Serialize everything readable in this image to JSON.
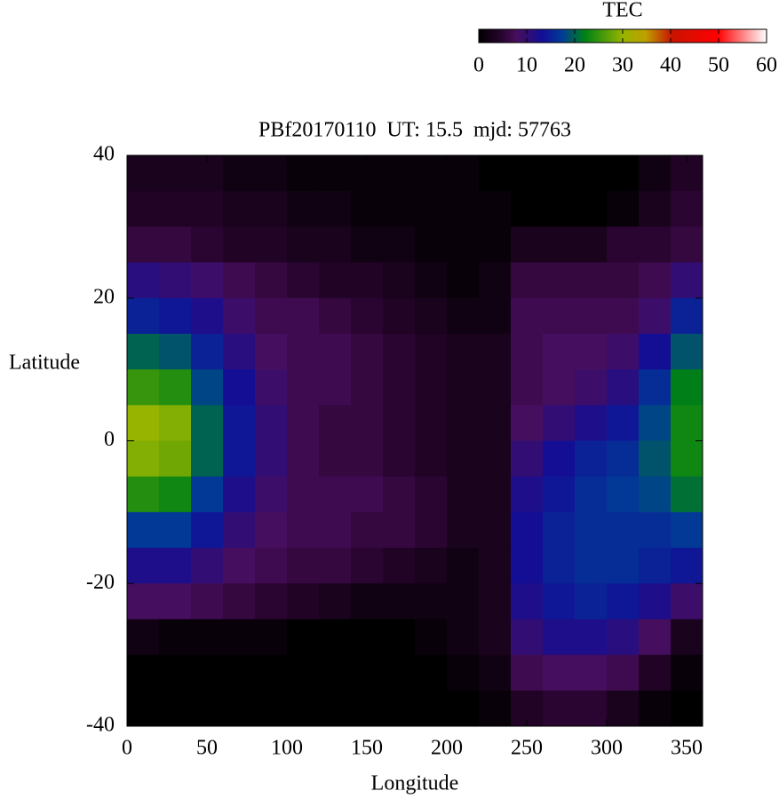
{
  "chart_data": {
    "type": "heatmap",
    "title": "PBf20170110  UT: 15.5  mjd: 57763",
    "xlabel": "Longitude",
    "ylabel": "Latitude",
    "x": [
      10,
      30,
      50,
      70,
      90,
      110,
      130,
      150,
      170,
      190,
      210,
      230,
      250,
      270,
      290,
      310,
      330,
      350
    ],
    "y": [
      37.5,
      32.5,
      27.5,
      22.5,
      17.5,
      12.5,
      7.5,
      2.5,
      -2.5,
      -7.5,
      -12.5,
      -17.5,
      -22.5,
      -27.5,
      -32.5,
      -37.5
    ],
    "z": [
      [
        3,
        3,
        3,
        2,
        2,
        1,
        1,
        1,
        1,
        1,
        1,
        0,
        0,
        0,
        0,
        0,
        2,
        4
      ],
      [
        4,
        4,
        4,
        3,
        3,
        2,
        2,
        1,
        1,
        1,
        1,
        1,
        0,
        0,
        0,
        1,
        3,
        5
      ],
      [
        6,
        6,
        5,
        4,
        4,
        3,
        3,
        2,
        2,
        1,
        1,
        1,
        3,
        3,
        3,
        5,
        5,
        6
      ],
      [
        11,
        10,
        9,
        7,
        6,
        5,
        4,
        4,
        3,
        2,
        1,
        2,
        6,
        6,
        6,
        6,
        7,
        10
      ],
      [
        15,
        14,
        12,
        9,
        7,
        7,
        6,
        5,
        4,
        3,
        2,
        2,
        7,
        7,
        7,
        7,
        9,
        15
      ],
      [
        20,
        19,
        15,
        11,
        8,
        7,
        7,
        6,
        5,
        4,
        3,
        3,
        7,
        8,
        8,
        9,
        13,
        19
      ],
      [
        25,
        24,
        18,
        13,
        9,
        7,
        7,
        6,
        5,
        4,
        3,
        3,
        7,
        8,
        9,
        11,
        16,
        22
      ],
      [
        30,
        29,
        20,
        14,
        10,
        7,
        6,
        6,
        5,
        4,
        3,
        3,
        8,
        10,
        12,
        14,
        18,
        23
      ],
      [
        29,
        28,
        20,
        14,
        10,
        7,
        6,
        6,
        5,
        4,
        3,
        3,
        10,
        13,
        15,
        16,
        19,
        23
      ],
      [
        24,
        23,
        17,
        12,
        9,
        7,
        7,
        7,
        6,
        5,
        3,
        3,
        12,
        14,
        16,
        17,
        18,
        21
      ],
      [
        17,
        17,
        14,
        10,
        8,
        7,
        7,
        6,
        6,
        5,
        3,
        3,
        13,
        15,
        16,
        16,
        16,
        17
      ],
      [
        12,
        12,
        10,
        8,
        7,
        6,
        6,
        5,
        4,
        3,
        2,
        3,
        13,
        15,
        16,
        16,
        15,
        14
      ],
      [
        8,
        8,
        7,
        6,
        5,
        4,
        3,
        2,
        2,
        2,
        2,
        3,
        12,
        14,
        15,
        14,
        12,
        9
      ],
      [
        2,
        1,
        1,
        1,
        1,
        0,
        0,
        0,
        0,
        1,
        2,
        3,
        10,
        12,
        12,
        11,
        8,
        3
      ],
      [
        0,
        0,
        0,
        0,
        0,
        0,
        0,
        0,
        0,
        0,
        1,
        2,
        7,
        8,
        8,
        7,
        4,
        1
      ],
      [
        0,
        0,
        0,
        0,
        0,
        0,
        0,
        0,
        0,
        0,
        0,
        1,
        4,
        5,
        5,
        3,
        1,
        0
      ]
    ],
    "xlim": [
      0,
      360
    ],
    "xticks": [
      0,
      50,
      100,
      150,
      200,
      250,
      300,
      350
    ],
    "ylim": [
      -40,
      40
    ],
    "yticks": [
      -40,
      -20,
      0,
      20,
      40
    ],
    "colorbar": {
      "label": "TEC",
      "lim": [
        0,
        60
      ],
      "ticks": [
        0,
        10,
        20,
        30,
        40,
        50,
        60
      ]
    }
  }
}
